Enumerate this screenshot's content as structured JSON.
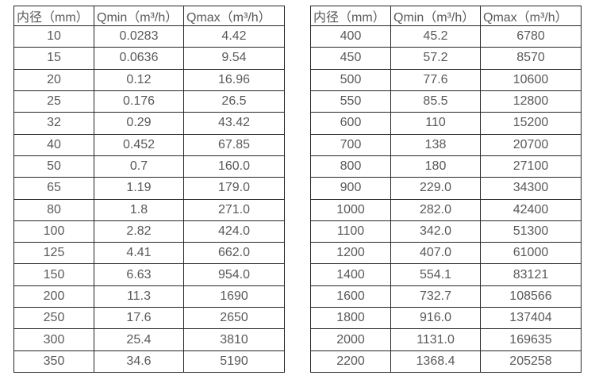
{
  "page": {
    "background_color": "#ffffff",
    "border_color": "#262626",
    "text_color": "#595959"
  },
  "chart_data": [
    {
      "type": "table",
      "name": "flow-spec-small-diameters",
      "columns": [
        "内径（mm）",
        "Qmin（m³/h）",
        "Qmax（m³/h）"
      ],
      "rows": [
        [
          "10",
          "0.0283",
          "4.42"
        ],
        [
          "15",
          "0.0636",
          "9.54"
        ],
        [
          "20",
          "0.12",
          "16.96"
        ],
        [
          "25",
          "0.176",
          "26.5"
        ],
        [
          "32",
          "0.29",
          "43.42"
        ],
        [
          "40",
          "0.452",
          "67.85"
        ],
        [
          "50",
          "0.7",
          "160.0"
        ],
        [
          "65",
          "1.19",
          "179.0"
        ],
        [
          "80",
          "1.8",
          "271.0"
        ],
        [
          "100",
          "2.82",
          "424.0"
        ],
        [
          "125",
          "4.41",
          "662.0"
        ],
        [
          "150",
          "6.63",
          "954.0"
        ],
        [
          "200",
          "11.3",
          "1690"
        ],
        [
          "250",
          "17.6",
          "2650"
        ],
        [
          "300",
          "25.4",
          "3810"
        ],
        [
          "350",
          "34.6",
          "5190"
        ]
      ]
    },
    {
      "type": "table",
      "name": "flow-spec-large-diameters",
      "columns": [
        "内径（mm）",
        "Qmin（m³/h）",
        "Qmax（m³/h）"
      ],
      "rows": [
        [
          "400",
          "45.2",
          "6780"
        ],
        [
          "450",
          "57.2",
          "8570"
        ],
        [
          "500",
          "77.6",
          "10600"
        ],
        [
          "550",
          "85.5",
          "12800"
        ],
        [
          "600",
          "110",
          "15200"
        ],
        [
          "700",
          "138",
          "20700"
        ],
        [
          "800",
          "180",
          "27100"
        ],
        [
          "900",
          "229.0",
          "34300"
        ],
        [
          "1000",
          "282.0",
          "42400"
        ],
        [
          "1100",
          "342.0",
          "51300"
        ],
        [
          "1200",
          "407.0",
          "61000"
        ],
        [
          "1400",
          "554.1",
          "83121"
        ],
        [
          "1600",
          "732.7",
          "108566"
        ],
        [
          "1800",
          "916.0",
          "137404"
        ],
        [
          "2000",
          "1131.0",
          "169635"
        ],
        [
          "2200",
          "1368.4",
          "205258"
        ]
      ]
    }
  ]
}
